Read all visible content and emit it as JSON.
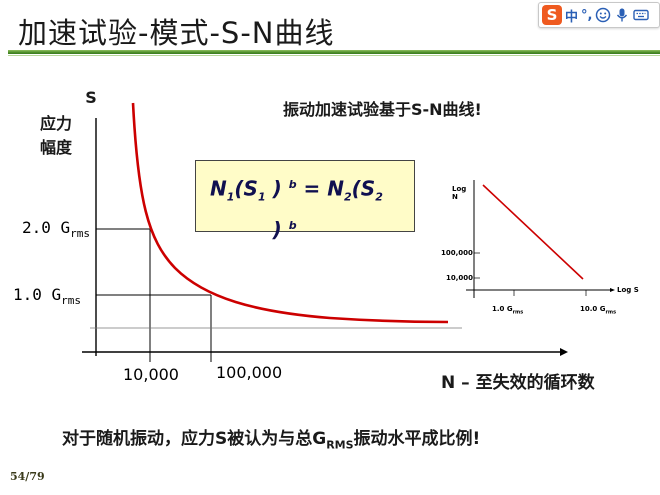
{
  "slide": {
    "title": "加速试验-模式-S-N曲线",
    "note": "振动加速试验基于S-N曲线!",
    "formula": {
      "n1": "N",
      "s1": "(S",
      "close1": " )",
      "b1": "b",
      "eq": " = N",
      "s2": "(S",
      "close2": " )",
      "b2": "b",
      "sub1": "1",
      "sub2": "1",
      "sub3": "2",
      "sub4": "2"
    },
    "bottom_note_pre": "对于随机振动，应力S被认为与总G",
    "bottom_note_sub": "RMS",
    "bottom_note_post": "振动水平成比例!",
    "page_number": "54/79"
  },
  "main_chart": {
    "y_label_line1": "S",
    "y_label_line2": "应力",
    "y_label_line3": "幅度",
    "y_tick_2": "2.0 G",
    "y_tick_2_sub": "rms",
    "y_tick_1": "1.0 G",
    "y_tick_1_sub": "rms",
    "x_tick_1": "10,000",
    "x_tick_2": "100,000",
    "x_axis_title": "N  –  至失效的循环数",
    "curve_color": "#cc0000"
  },
  "log_chart": {
    "y_label_line1": "Log",
    "y_label_line2": "N",
    "y_tick_1": "100,000",
    "y_tick_2": "10,000",
    "x_label": "Log S",
    "x_tick_1": "1.0 G",
    "x_tick_1_sub": "rms",
    "x_tick_2": "10.0 G",
    "x_tick_2_sub": "rms"
  },
  "chart_data": [
    {
      "type": "line",
      "title": "",
      "xlabel": "N  –  至失效的循环数",
      "ylabel": "S 应力 幅度",
      "x_ticks": [
        "10,000",
        "100,000"
      ],
      "y_ticks": [
        "1.0 Grms",
        "2.0 Grms"
      ],
      "series": [
        {
          "x": [
            10000,
            100000
          ],
          "y": [
            2.0,
            1.0
          ]
        }
      ],
      "grid": false
    },
    {
      "type": "line",
      "title": "",
      "xlabel": "Log S",
      "ylabel": "Log N",
      "x_ticks": [
        "1.0 Grms",
        "10.0 Grms"
      ],
      "y_ticks": [
        "10,000",
        "100,000"
      ],
      "series": [
        {
          "x": [
            1.0,
            10.0
          ],
          "y": [
            100000,
            10000
          ]
        }
      ],
      "grid": false
    }
  ],
  "ime_toolbar": {
    "logo": "S",
    "lang": "中",
    "punct": "°,"
  }
}
